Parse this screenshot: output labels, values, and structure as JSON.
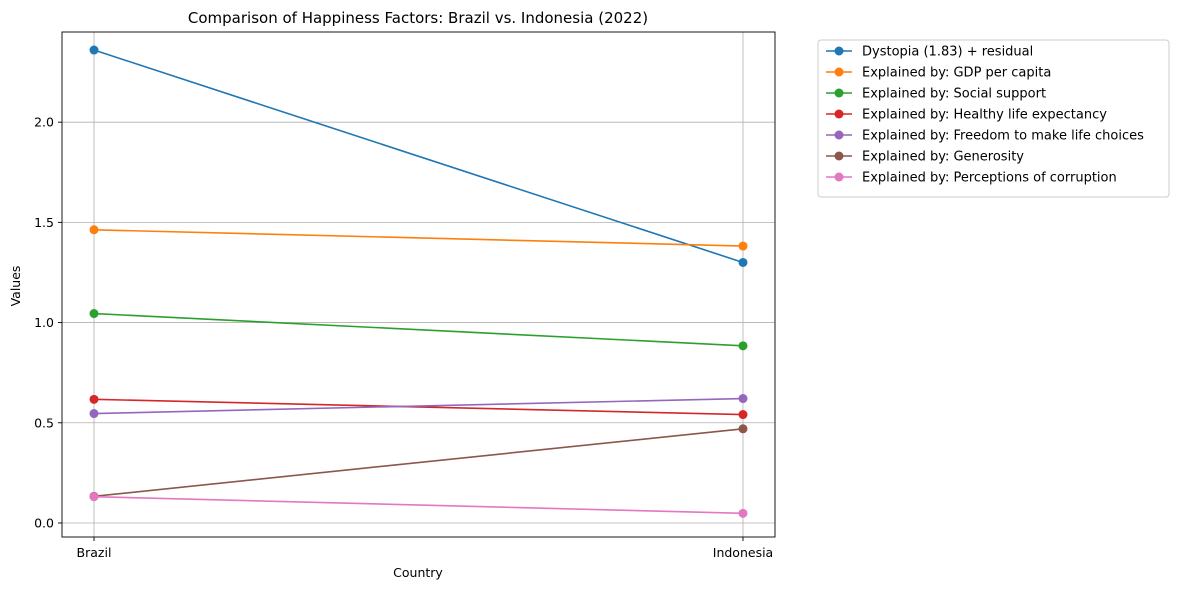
{
  "chart_data": {
    "type": "line",
    "title": "Comparison of Happiness Factors: Brazil vs. Indonesia (2022)",
    "xlabel": "Country",
    "ylabel": "Values",
    "categories": [
      "Brazil",
      "Indonesia"
    ],
    "ylim": [
      -0.07,
      2.45
    ],
    "yticks": [
      0.0,
      0.5,
      1.0,
      1.5,
      2.0
    ],
    "yticks_labels": [
      "0.0",
      "0.5",
      "1.0",
      "1.5",
      "2.0"
    ],
    "grid": true,
    "legend_position": "outside-right",
    "series": [
      {
        "name": "Dystopia (1.83) + residual",
        "values": [
          2.36,
          1.3
        ],
        "color": "#1f77b4"
      },
      {
        "name": "Explained by: GDP per capita",
        "values": [
          1.463,
          1.382
        ],
        "color": "#ff7f0e"
      },
      {
        "name": "Explained by: Social support",
        "values": [
          1.045,
          0.884
        ],
        "color": "#2ca02c"
      },
      {
        "name": "Explained by: Healthy life expectancy",
        "values": [
          0.617,
          0.541
        ],
        "color": "#d62728"
      },
      {
        "name": "Explained by: Freedom to make life choices",
        "values": [
          0.546,
          0.621
        ],
        "color": "#9467bd"
      },
      {
        "name": "Explained by: Generosity",
        "values": [
          0.133,
          0.47
        ],
        "color": "#8c564b"
      },
      {
        "name": "Explained by: Perceptions of corruption",
        "values": [
          0.131,
          0.048
        ],
        "color": "#e377c2"
      }
    ]
  }
}
